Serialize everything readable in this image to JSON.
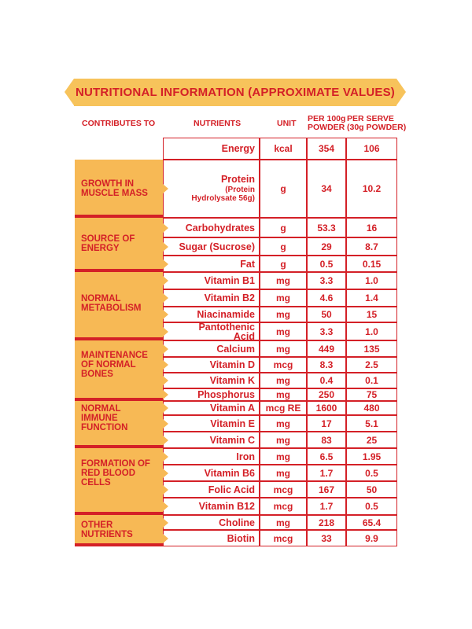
{
  "title": "NUTRITIONAL INFORMATION (APPROXIMATE VALUES)",
  "headers": {
    "contributes_to": "CONTRIBUTES TO",
    "nutrients": "NUTRIENTS",
    "unit": "UNIT",
    "per100_line1": "PER 100g",
    "per100_line2": "POWDER",
    "perserve_line1": "PER SERVE",
    "perserve_line2": "(30g POWDER)"
  },
  "colors": {
    "accent": "#d42027",
    "category_fill": "#f7b955",
    "banner_fill": "#f7c35b"
  },
  "categories": [
    {
      "label": "GROWTH IN\nMUSCLE MASS"
    },
    {
      "label": "SOURCE OF\nENERGY"
    },
    {
      "label": "NORMAL\nMETABOLISM"
    },
    {
      "label": "MAINTENANCE\nOF NORMAL\nBONES"
    },
    {
      "label": "NORMAL\nIMMUNE\nFUNCTION"
    },
    {
      "label": "FORMATION OF\nRED BLOOD\nCELLS"
    },
    {
      "label": "OTHER\nNUTRIENTS"
    }
  ],
  "rows": [
    {
      "nutrient": "Energy",
      "unit": "kcal",
      "per100": "354",
      "perserve": "106"
    },
    {
      "nutrient": "Protein",
      "sub": "(Protein\nHydrolysate 56g)",
      "unit": "g",
      "per100": "34",
      "perserve": "10.2"
    },
    {
      "nutrient": "Carbohydrates",
      "unit": "g",
      "per100": "53.3",
      "perserve": "16"
    },
    {
      "nutrient": "Sugar (Sucrose)",
      "unit": "g",
      "per100": "29",
      "perserve": "8.7"
    },
    {
      "nutrient": "Fat",
      "unit": "g",
      "per100": "0.5",
      "perserve": "0.15"
    },
    {
      "nutrient": "Vitamin B1",
      "unit": "mg",
      "per100": "3.3",
      "perserve": "1.0"
    },
    {
      "nutrient": "Vitamin B2",
      "unit": "mg",
      "per100": "4.6",
      "perserve": "1.4"
    },
    {
      "nutrient": "Niacinamide",
      "unit": "mg",
      "per100": "50",
      "perserve": "15"
    },
    {
      "nutrient": "Pantothenic\nAcid",
      "unit": "mg",
      "per100": "3.3",
      "perserve": "1.0"
    },
    {
      "nutrient": "Calcium",
      "unit": "mg",
      "per100": "449",
      "perserve": "135"
    },
    {
      "nutrient": "Vitamin D",
      "unit": "mcg",
      "per100": "8.3",
      "perserve": "2.5"
    },
    {
      "nutrient": "Vitamin K",
      "unit": "mg",
      "per100": "0.4",
      "perserve": "0.1"
    },
    {
      "nutrient": "Phosphorus",
      "unit": "mg",
      "per100": "250",
      "perserve": "75"
    },
    {
      "nutrient": "Vitamin A",
      "unit": "mcg RE",
      "per100": "1600",
      "perserve": "480"
    },
    {
      "nutrient": "Vitamin E",
      "unit": "mg",
      "per100": "17",
      "perserve": "5.1"
    },
    {
      "nutrient": "Vitamin C",
      "unit": "mg",
      "per100": "83",
      "perserve": "25"
    },
    {
      "nutrient": "Iron",
      "unit": "mg",
      "per100": "6.5",
      "perserve": "1.95"
    },
    {
      "nutrient": "Vitamin B6",
      "unit": "mg",
      "per100": "1.7",
      "perserve": "0.5"
    },
    {
      "nutrient": "Folic Acid",
      "unit": "mcg",
      "per100": "167",
      "perserve": "50"
    },
    {
      "nutrient": "Vitamin B12",
      "unit": "mcg",
      "per100": "1.7",
      "perserve": "0.5"
    },
    {
      "nutrient": "Choline",
      "unit": "mg",
      "per100": "218",
      "perserve": "65.4"
    },
    {
      "nutrient": "Biotin",
      "unit": "mcg",
      "per100": "33",
      "perserve": "9.9"
    }
  ]
}
